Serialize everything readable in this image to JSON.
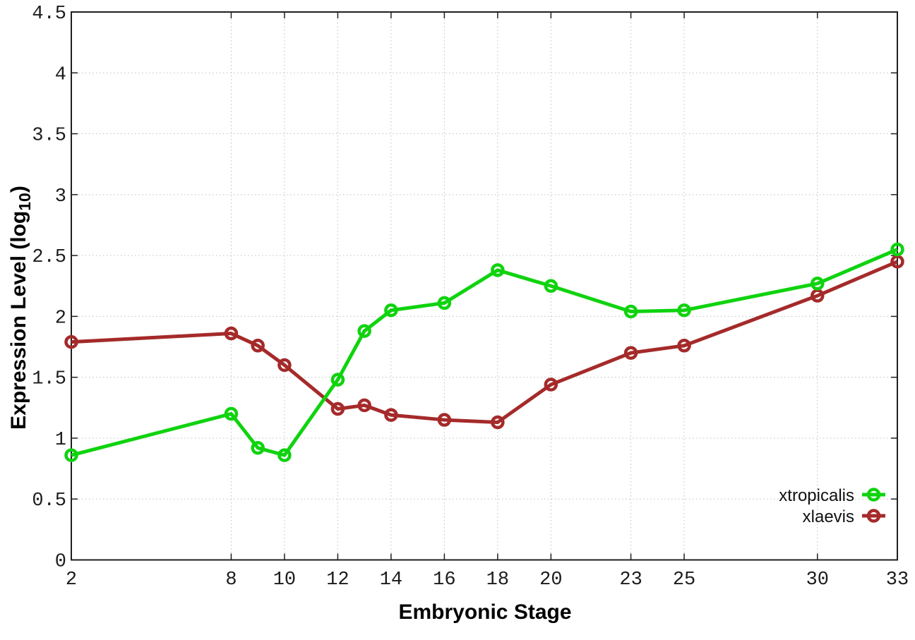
{
  "chart_data": {
    "type": "line",
    "title": "",
    "xlabel": "Embryonic Stage",
    "ylabel": {
      "pre": "Expression Level (log",
      "sub": "10",
      "post": ")"
    },
    "xlim": [
      2,
      33
    ],
    "ylim": [
      0,
      4.5
    ],
    "grid": true,
    "legend_position": "inside bottom-right",
    "x": [
      2,
      8,
      9,
      10,
      12,
      13,
      14,
      16,
      18,
      20,
      23,
      25,
      30,
      33
    ],
    "series": [
      {
        "name": "xtropicalis",
        "color": "#0fd30f",
        "values": [
          0.86,
          1.2,
          0.92,
          0.86,
          1.48,
          1.88,
          2.05,
          2.11,
          2.38,
          2.25,
          2.04,
          2.05,
          2.27,
          2.55
        ]
      },
      {
        "name": "xlaevis",
        "color": "#a52a2a",
        "values": [
          1.79,
          1.86,
          1.76,
          1.6,
          1.24,
          1.27,
          1.19,
          1.15,
          1.13,
          1.44,
          1.7,
          1.76,
          2.17,
          2.45
        ]
      }
    ],
    "xticks": [
      2,
      8,
      10,
      12,
      14,
      16,
      18,
      20,
      23,
      25,
      30,
      33
    ],
    "xtick_labels": [
      "2",
      "8",
      "10",
      "12",
      "14",
      "16",
      "18",
      "20",
      "23",
      "25",
      "30",
      "33"
    ],
    "yticks": [
      0,
      0.5,
      1,
      1.5,
      2,
      2.5,
      3,
      3.5,
      4,
      4.5
    ],
    "ytick_labels": [
      "0",
      "0.5",
      "1",
      "1.5",
      "2",
      "2.5",
      "3",
      "3.5",
      "4",
      "4.5"
    ]
  }
}
